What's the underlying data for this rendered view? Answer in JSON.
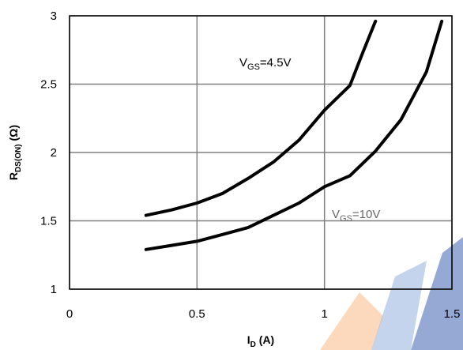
{
  "chart_data": {
    "type": "line",
    "title": "",
    "xlabel": {
      "main": "I",
      "sub": "D",
      "unit": " (A)"
    },
    "ylabel": {
      "main": "R",
      "sub": "DS(ON)",
      "unit": " (Ω)"
    },
    "xlim": [
      0,
      1.5
    ],
    "ylim": [
      1,
      3
    ],
    "grid": true,
    "x_ticks": [
      "0",
      "0.5",
      "1",
      "1.5"
    ],
    "y_ticks": [
      "1",
      "1.5",
      "2",
      "2.5",
      "3"
    ],
    "series": [
      {
        "name": {
          "main": "V",
          "sub": "GS",
          "rest": "=4.5V"
        },
        "color": "#000000",
        "label_color": "#000000",
        "x": [
          0.3,
          0.4,
          0.5,
          0.6,
          0.7,
          0.8,
          0.9,
          1.0,
          1.1,
          1.15,
          1.2
        ],
        "y": [
          1.54,
          1.58,
          1.63,
          1.7,
          1.81,
          1.93,
          2.09,
          2.31,
          2.49,
          2.73,
          2.96
        ]
      },
      {
        "name": {
          "main": "V",
          "sub": "GS",
          "rest": "=10V"
        },
        "color": "#000000",
        "label_color": "#666666",
        "x": [
          0.3,
          0.4,
          0.5,
          0.6,
          0.7,
          0.8,
          0.9,
          1.0,
          1.1,
          1.2,
          1.3,
          1.4,
          1.46
        ],
        "y": [
          1.29,
          1.32,
          1.35,
          1.4,
          1.45,
          1.54,
          1.63,
          1.75,
          1.83,
          2.01,
          2.24,
          2.59,
          2.96
        ]
      }
    ]
  }
}
